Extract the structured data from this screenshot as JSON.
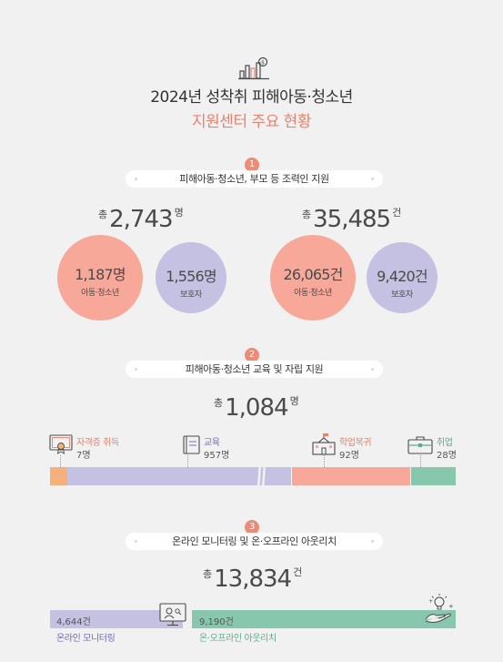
{
  "title_line1": "2024년 성착취 피해아동·청소년",
  "title_line2": "지원센터 주요 현황",
  "colors": {
    "accent": "#ee8b76",
    "salmon": "#f7a898",
    "lavender": "#c5c1e3",
    "green": "#86c7ae",
    "orange": "#f5b07b",
    "teal": "#5faa8e"
  },
  "section1": {
    "badge": "1",
    "label": "피해아동·청소년, 부모 등 조력인 지원",
    "left": {
      "prefix": "총",
      "value": "2,743",
      "unit": "명",
      "big": {
        "value": "1,187명",
        "label": "아동·청소년"
      },
      "small": {
        "value": "1,556명",
        "label": "보호자"
      }
    },
    "right": {
      "prefix": "총",
      "value": "35,485",
      "unit": "건",
      "big": {
        "value": "26,065건",
        "label": "아동·청소년"
      },
      "small": {
        "value": "9,420건",
        "label": "보호자"
      }
    }
  },
  "section2": {
    "badge": "2",
    "label": "피해아동·청소년 교육 및 자립 지원",
    "total": {
      "prefix": "총",
      "value": "1,084",
      "unit": "명"
    },
    "items": [
      {
        "name": "자격증 취득",
        "value": "7명",
        "icon": "certificate-icon",
        "count": 7
      },
      {
        "name": "교육",
        "value": "957명",
        "icon": "book-icon",
        "count": 957
      },
      {
        "name": "학업복귀",
        "value": "92명",
        "icon": "school-icon",
        "count": 92
      },
      {
        "name": "취업",
        "value": "28명",
        "icon": "briefcase-icon",
        "count": 28
      }
    ]
  },
  "section3": {
    "badge": "3",
    "label": "온라인 모니터링 및 온·오프라인 아웃리치",
    "total": {
      "prefix": "총",
      "value": "13,834",
      "unit": "건"
    },
    "items": [
      {
        "name": "온라인 모니터링",
        "value": "4,644건",
        "icon": "monitor-icon",
        "count": 4644
      },
      {
        "name": "온·오프라인 아웃리치",
        "value": "9,190건",
        "icon": "hand-lightbulb-icon",
        "count": 9190
      }
    ]
  }
}
